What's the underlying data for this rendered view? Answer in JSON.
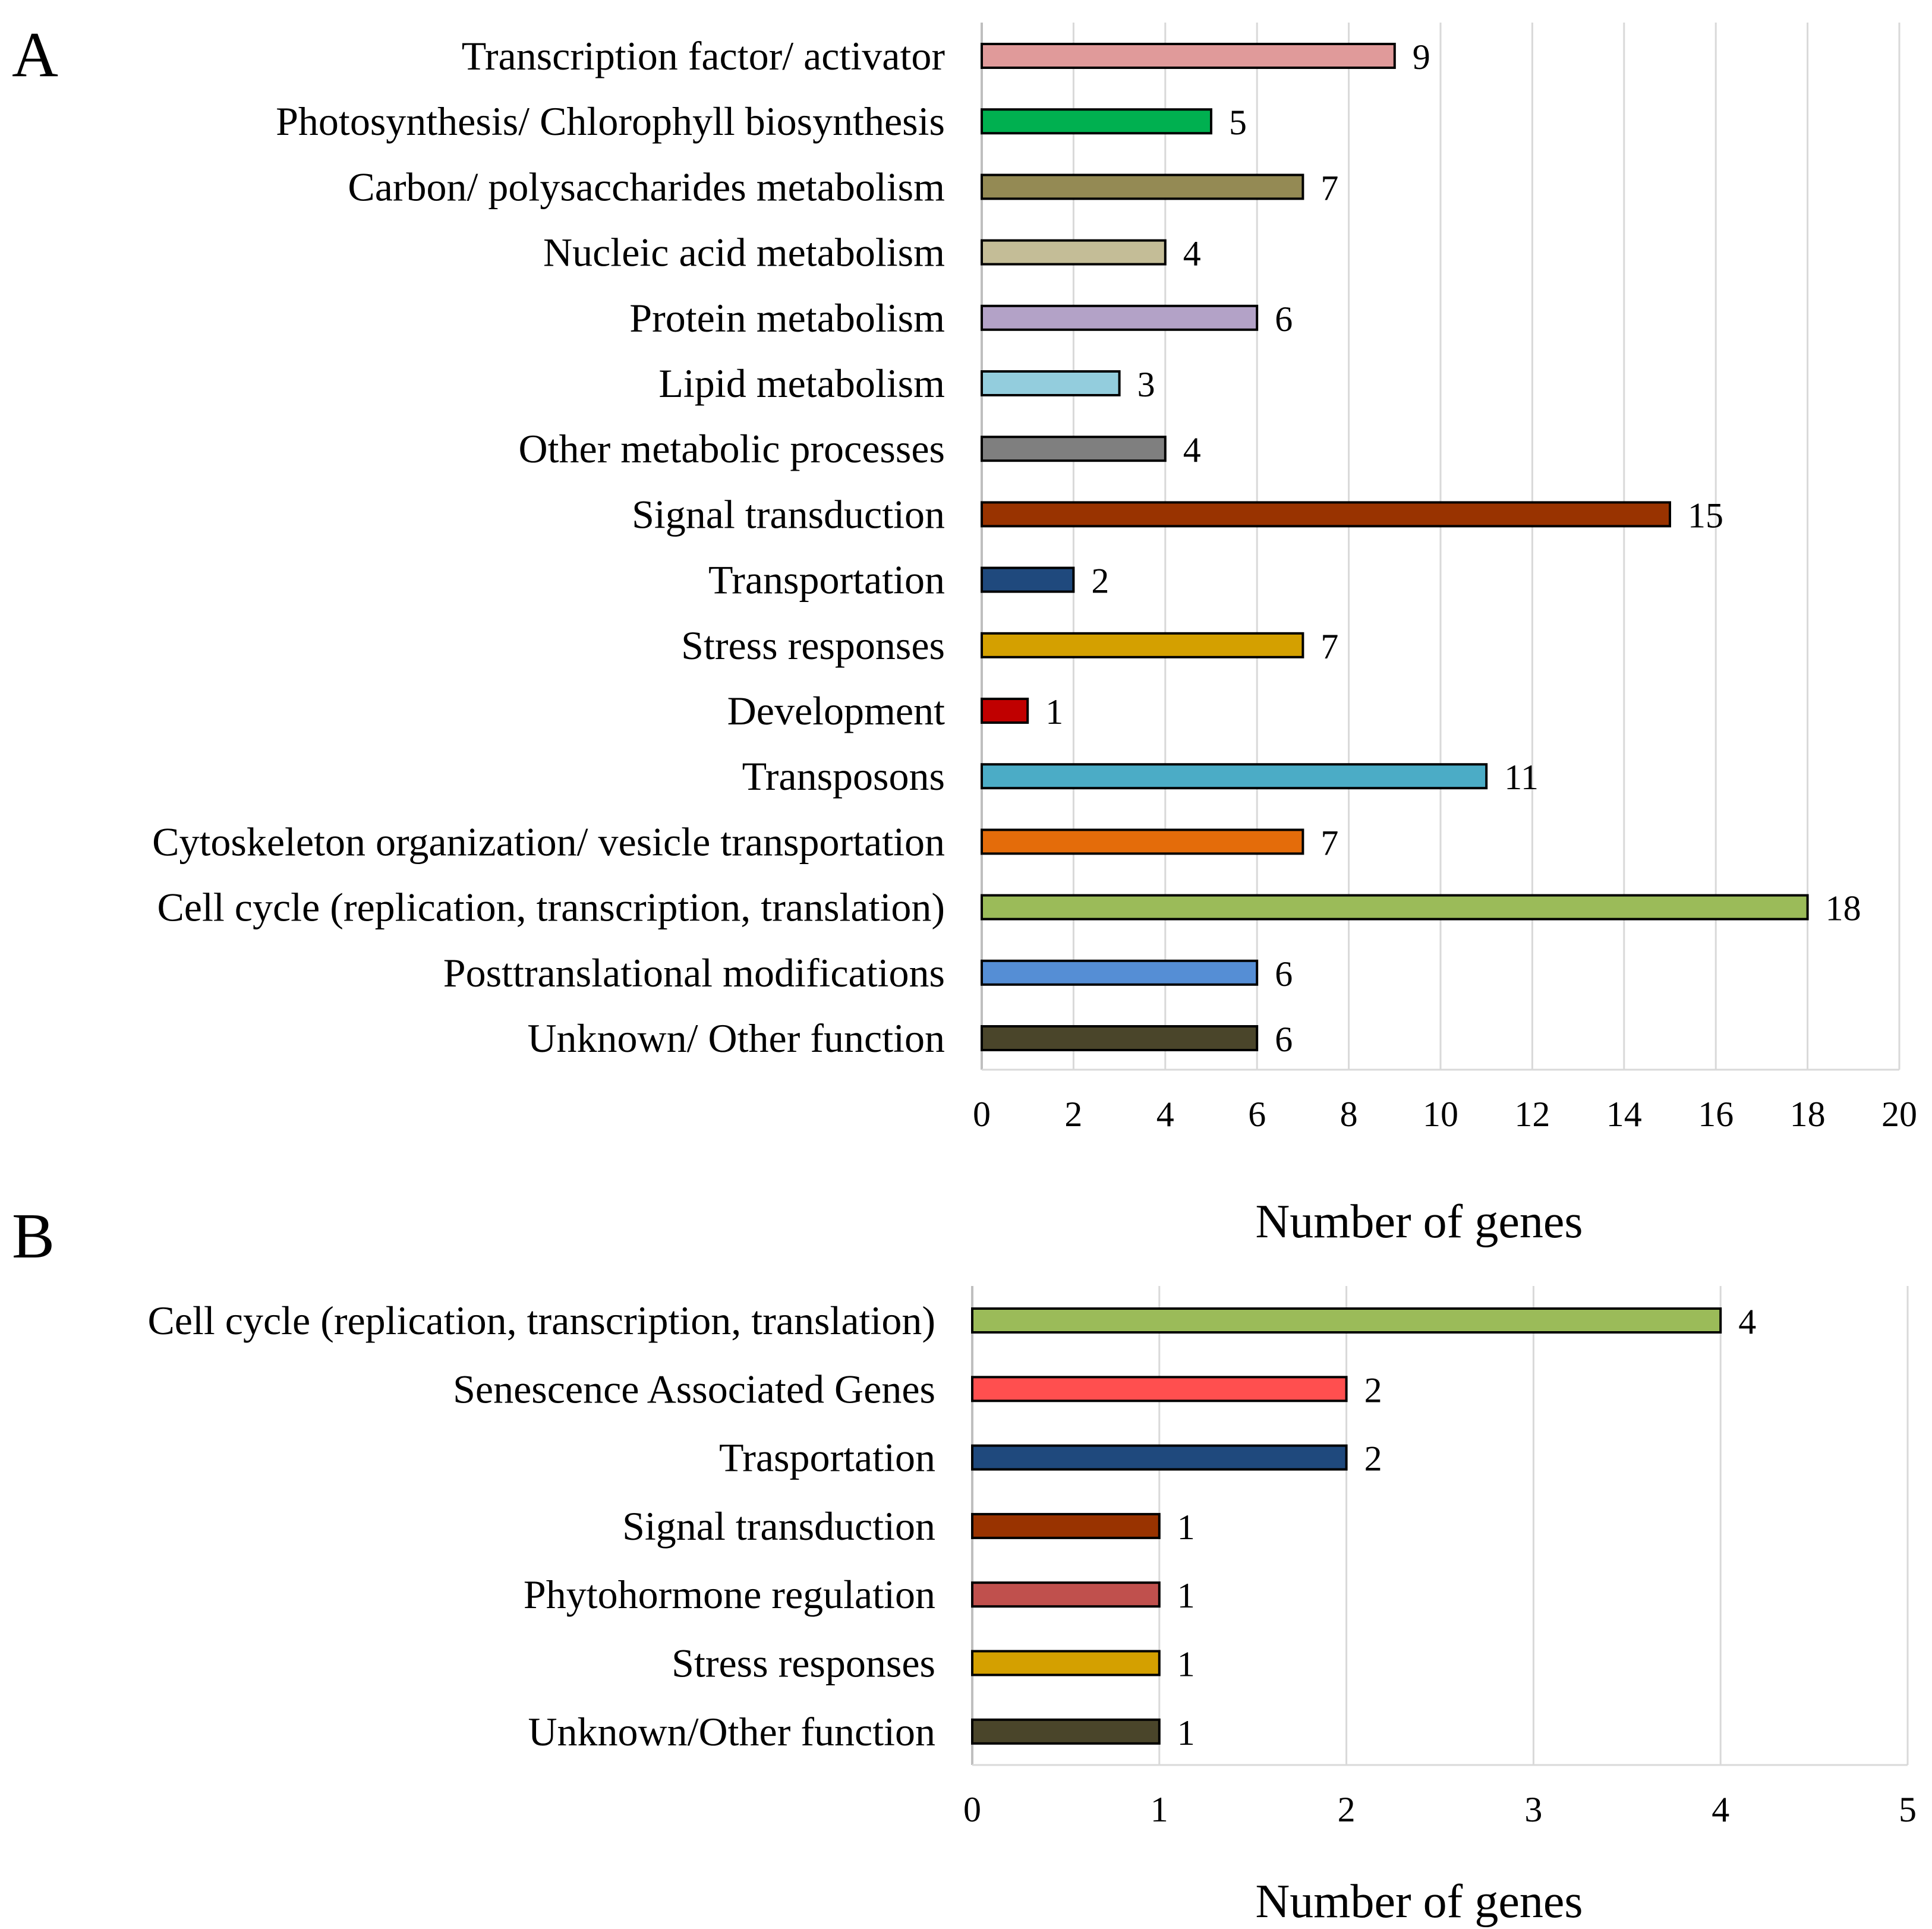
{
  "chart_data": [
    {
      "panel": "A",
      "type": "bar",
      "orientation": "horizontal",
      "categories": [
        "Transcription factor/ activator",
        "Photosynthesis/ Chlorophyll biosynthesis",
        "Carbon/ polysaccharides metabolism",
        "Nucleic acid metabolism",
        "Protein metabolism",
        "Lipid metabolism",
        "Other metabolic processes",
        "Signal transduction",
        "Transportation",
        "Stress responses",
        "Development",
        "Transposons",
        "Cytoskeleton organization/ vesicle transportation",
        "Cell cycle (replication, transcription, translation)",
        "Posttranslational modifications",
        "Unknown/ Other function"
      ],
      "values": [
        9,
        5,
        7,
        4,
        6,
        3,
        4,
        15,
        2,
        7,
        1,
        11,
        7,
        18,
        6,
        6
      ],
      "colors": [
        "#e09a9a",
        "#00b050",
        "#948a54",
        "#c4bd97",
        "#b3a2c7",
        "#93cddd",
        "#7f7f7f",
        "#993300",
        "#1f497d",
        "#d4a000",
        "#c00000",
        "#4bacc6",
        "#e46c0a",
        "#9bbb59",
        "#558ed5",
        "#4a452a"
      ],
      "xlabel": "Number of genes",
      "xlim": [
        0,
        20
      ],
      "xticks": [
        0,
        2,
        4,
        6,
        8,
        10,
        12,
        14,
        16,
        18,
        20
      ],
      "grid": "vertical gridlines",
      "data_labels": true
    },
    {
      "panel": "B",
      "type": "bar",
      "orientation": "horizontal",
      "categories": [
        "Cell cycle (replication, transcription, translation)",
        "Senescence Associated Genes",
        "Trasportation",
        "Signal transduction",
        "Phytohormone regulation",
        "Stress responses",
        "Unknown/Other function"
      ],
      "values": [
        4,
        2,
        2,
        1,
        1,
        1,
        1
      ],
      "colors": [
        "#9bbb59",
        "#ff4f4f",
        "#1f497d",
        "#993300",
        "#c0504d",
        "#d4a000",
        "#4a452a"
      ],
      "xlabel": "Number of genes",
      "xlim": [
        0,
        5
      ],
      "xticks": [
        0,
        1,
        2,
        3,
        4,
        5
      ],
      "grid": "vertical gridlines",
      "data_labels": true
    }
  ]
}
